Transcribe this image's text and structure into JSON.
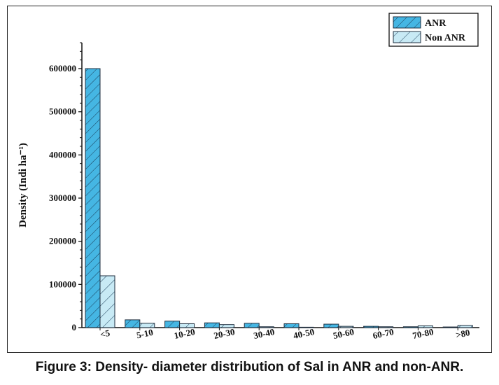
{
  "caption": "Figure 3: Density- diameter distribution of Sal in ANR and non-ANR.",
  "chart_data": {
    "type": "bar",
    "ylabel": "Density (Indi ha⁻¹)",
    "xlabel": "",
    "categories": [
      "<5",
      "5-10",
      "10-20",
      "20-30",
      "30-40",
      "40-50",
      "50-60",
      "60-70",
      "70-80",
      ">80"
    ],
    "series": [
      {
        "name": "ANR",
        "values": [
          600000,
          18000,
          15000,
          11000,
          10000,
          9000,
          8000,
          3000,
          2000,
          1500
        ],
        "color": "#45b6e3",
        "hatch": "dense"
      },
      {
        "name": "Non ANR",
        "values": [
          120000,
          10000,
          9000,
          7000,
          2000,
          1000,
          3000,
          2000,
          4000,
          5000
        ],
        "color": "#c8eaf5",
        "hatch": "sparse"
      }
    ],
    "ylim": [
      0,
      660000
    ],
    "yticks": [
      0,
      100000,
      200000,
      300000,
      400000,
      500000,
      600000
    ],
    "ytick_labels": [
      "0",
      "100000",
      "200000",
      "300000",
      "400000",
      "500000",
      "600000"
    ],
    "legend_position": "top-right",
    "grid": false
  }
}
